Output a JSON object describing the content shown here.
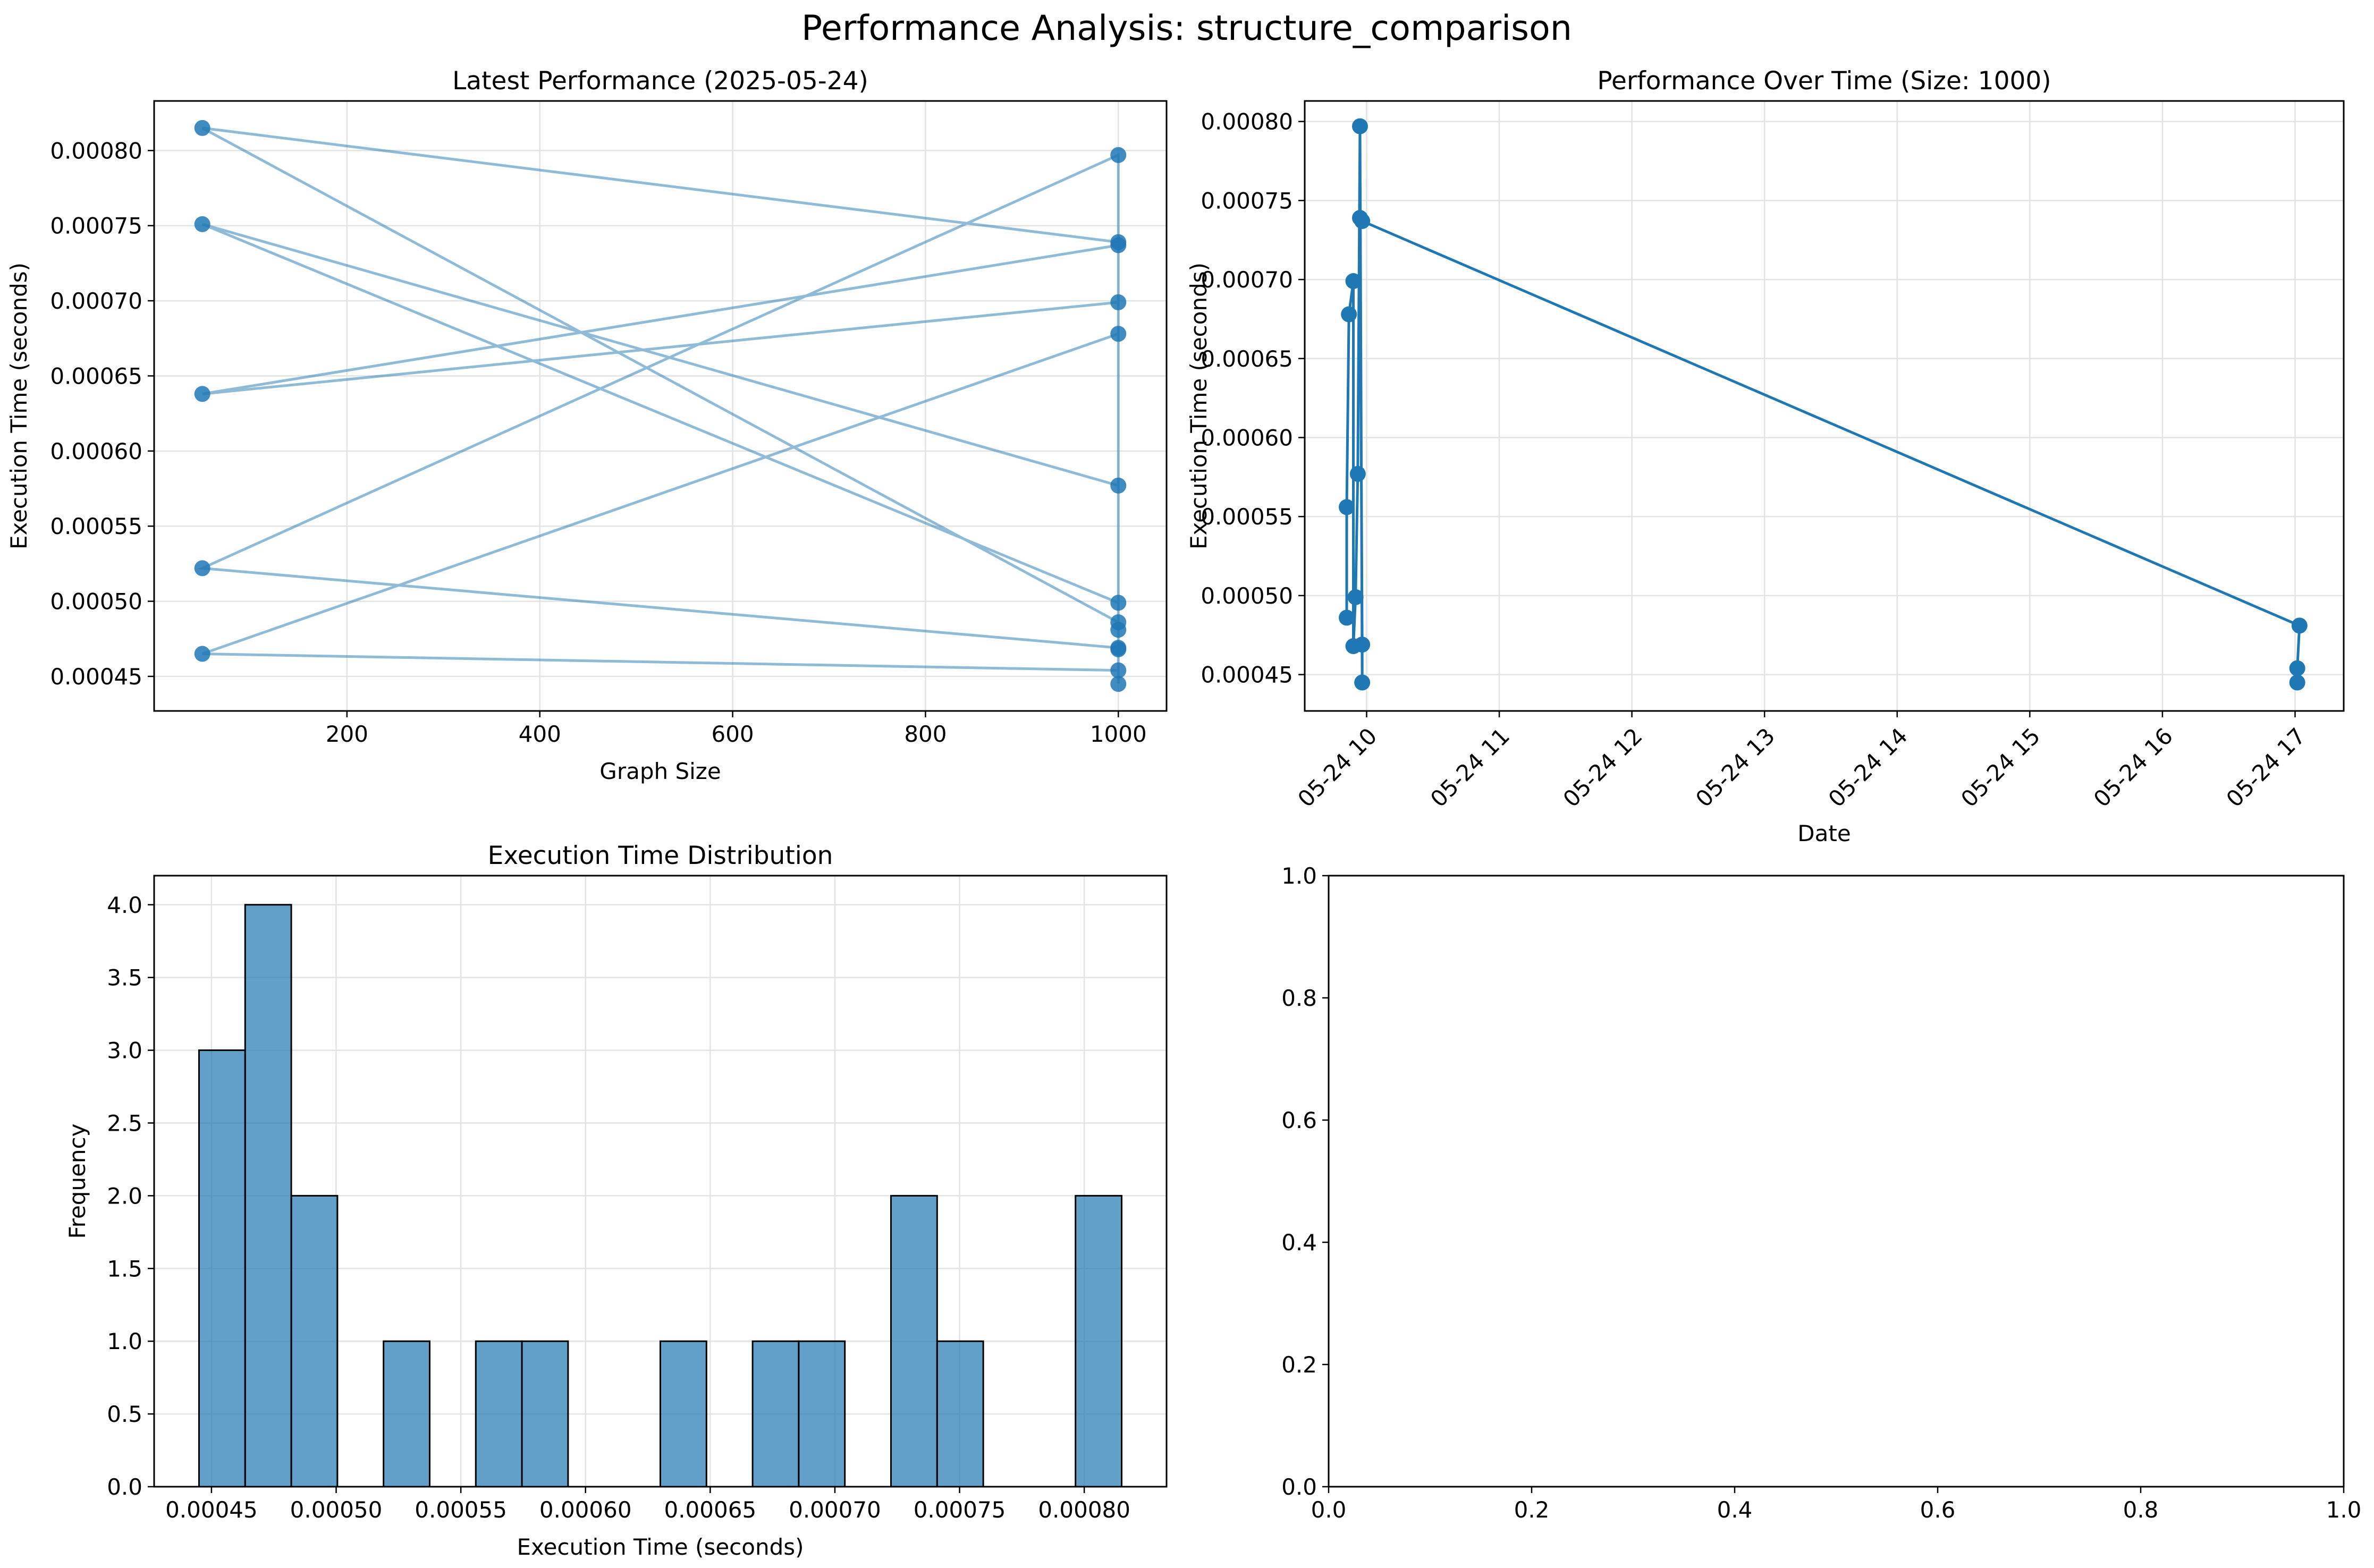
{
  "figure": {
    "suptitle": "Performance Analysis: structure_comparison"
  },
  "chart_data": [
    {
      "type": "scatter",
      "title": "Latest Performance (2025-05-24)",
      "xlabel": "Graph Size",
      "ylabel": "Execution Time (seconds)",
      "xlim": [
        0,
        1050
      ],
      "ylim": [
        0.000427,
        0.000833
      ],
      "xticks": [
        200,
        400,
        600,
        800,
        1000
      ],
      "yticks": [
        0.00045,
        0.0005,
        0.00055,
        0.0006,
        0.00065,
        0.0007,
        0.00075,
        0.0008
      ],
      "ytick_format": 5,
      "color": "#1f77b4",
      "grid": true,
      "x": [
        1000,
        1000,
        50,
        1000,
        1000,
        1000,
        50,
        1000,
        1000,
        50,
        1000,
        1000,
        50,
        1000,
        1000,
        50,
        1000,
        1000
      ],
      "y": [
        0.000445,
        0.000797,
        0.000522,
        0.000469,
        0.000468,
        0.000499,
        0.000751,
        0.000577,
        0.000486,
        0.000815,
        0.000739,
        0.000737,
        0.000638,
        0.000699,
        0.000678,
        0.000465,
        0.000454,
        0.000481
      ]
    },
    {
      "type": "line",
      "title": "Performance Over Time (Size: 1000)",
      "xlabel": "Date",
      "ylabel": "Execution Time (seconds)",
      "xlim": [
        "2025-05-24 09:32",
        "2025-05-24 17:22"
      ],
      "ylim": [
        0.000427,
        0.000813
      ],
      "xticks": [
        "2025-05-24 10:00",
        "2025-05-24 11:00",
        "2025-05-24 12:00",
        "2025-05-24 13:00",
        "2025-05-24 14:00",
        "2025-05-24 15:00",
        "2025-05-24 16:00",
        "2025-05-24 17:00"
      ],
      "xticklabels": [
        "05-24 10",
        "05-24 11",
        "05-24 12",
        "05-24 13",
        "05-24 14",
        "05-24 15",
        "05-24 16",
        "05-24 17"
      ],
      "yticks": [
        0.00045,
        0.0005,
        0.00055,
        0.0006,
        0.00065,
        0.0007,
        0.00075,
        0.0008
      ],
      "ytick_format": 5,
      "color": "#1f77b4",
      "grid": true,
      "x": [
        "2025-05-24 09:51",
        "2025-05-24 09:51",
        "2025-05-24 09:52",
        "2025-05-24 09:54",
        "2025-05-24 09:54",
        "2025-05-24 09:55",
        "2025-05-24 09:56",
        "2025-05-24 09:57",
        "2025-05-24 09:58",
        "2025-05-24 09:58",
        "2025-05-24 09:57",
        "2025-05-24 09:58",
        "2025-05-24 17:02",
        "2025-05-24 17:01",
        "2025-05-24 17:01"
      ],
      "y": [
        0.000486,
        0.000556,
        0.000678,
        0.000699,
        0.000468,
        0.000499,
        0.000577,
        0.000797,
        0.000445,
        0.000469,
        0.000739,
        0.000737,
        0.000481,
        0.000454,
        0.000445
      ]
    },
    {
      "type": "bar",
      "title": "Execution Time Distribution",
      "xlabel": "Execution Time (seconds)",
      "ylabel": "Frequency",
      "xlim": [
        0.000427,
        0.000833
      ],
      "ylim": [
        0,
        4.2
      ],
      "xticks": [
        0.00045,
        0.0005,
        0.00055,
        0.0006,
        0.00065,
        0.0007,
        0.00075,
        0.0008
      ],
      "xtick_format": 5,
      "yticks": [
        0,
        0.5,
        1,
        1.5,
        2,
        2.5,
        3,
        3.5,
        4
      ],
      "ytick_format": 1,
      "color": "#1f77b4",
      "grid": true,
      "bin_edges": [
        0.000445,
        0.0004635,
        0.000482,
        0.0005005,
        0.000519,
        0.0005375,
        0.000556,
        0.0005745,
        0.000593,
        0.0006115,
        0.00063,
        0.0006485,
        0.000667,
        0.0006855,
        0.000704,
        0.0007225,
        0.000741,
        0.0007595,
        0.000778,
        0.0007965,
        0.000815
      ],
      "counts": [
        3,
        4,
        2,
        0,
        1,
        0,
        1,
        1,
        0,
        0,
        1,
        0,
        1,
        1,
        0,
        2,
        1,
        0,
        0,
        2
      ]
    },
    {
      "type": "scatter",
      "title": "",
      "xlabel": "",
      "ylabel": "",
      "xlim": [
        0,
        1
      ],
      "ylim": [
        0,
        1
      ],
      "xticks": [
        0,
        0.2,
        0.4,
        0.6,
        0.8,
        1
      ],
      "xtick_format": 1,
      "yticks": [
        0,
        0.2,
        0.4,
        0.6,
        0.8,
        1
      ],
      "ytick_format": 1,
      "grid": false,
      "x": [],
      "y": []
    }
  ]
}
